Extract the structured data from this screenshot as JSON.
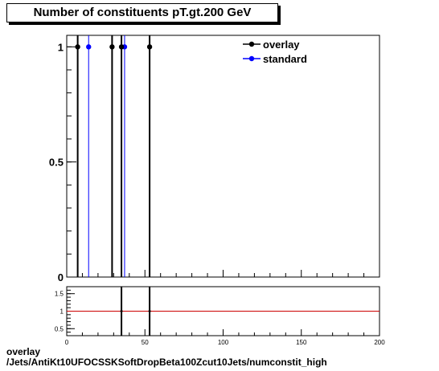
{
  "title": "Number of constituents pT.gt.200 GeV",
  "footer": {
    "line1": "overlay",
    "line2": "/Jets/AntiKt10UFOCSSKSoftDropBeta100Zcut10Jets/numconstit_high"
  },
  "colors": {
    "overlay": "#000000",
    "standard": "#0000ff",
    "ratio_line": "#cc0000"
  },
  "chart_data": [
    {
      "type": "scatter",
      "title": "Number of constituents pT.gt.200 GeV",
      "xlabel": "",
      "ylabel": "",
      "xlim": [
        0,
        200
      ],
      "ylim": [
        0,
        1.05
      ],
      "yticks": [
        {
          "value": 0,
          "label": "0"
        },
        {
          "value": 0.5,
          "label": "0.5"
        },
        {
          "value": 1,
          "label": "1"
        }
      ],
      "grid": false,
      "legend_position": "top-right",
      "series": [
        {
          "name": "overlay",
          "color": "#000000",
          "x": [
            7,
            29,
            35,
            53
          ],
          "y": [
            1,
            1,
            1,
            1
          ]
        },
        {
          "name": "standard",
          "color": "#0000ff",
          "x": [
            14,
            37
          ],
          "y": [
            1,
            1
          ]
        }
      ]
    },
    {
      "type": "line",
      "title": "",
      "xlabel": "",
      "ylabel": "",
      "xlim": [
        0,
        200
      ],
      "ylim": [
        0.3,
        1.7
      ],
      "xticks": [
        {
          "value": 0,
          "label": "0"
        },
        {
          "value": 50,
          "label": "50"
        },
        {
          "value": 100,
          "label": "100"
        },
        {
          "value": 150,
          "label": "150"
        },
        {
          "value": 200,
          "label": "200"
        }
      ],
      "yticks": [
        {
          "value": 0.5,
          "label": "0.5"
        },
        {
          "value": 1,
          "label": "1"
        },
        {
          "value": 1.5,
          "label": "1.5"
        }
      ],
      "reference_line": 1,
      "series": [
        {
          "x": [
            35,
            53
          ],
          "y": [
            1,
            1
          ]
        }
      ]
    }
  ]
}
